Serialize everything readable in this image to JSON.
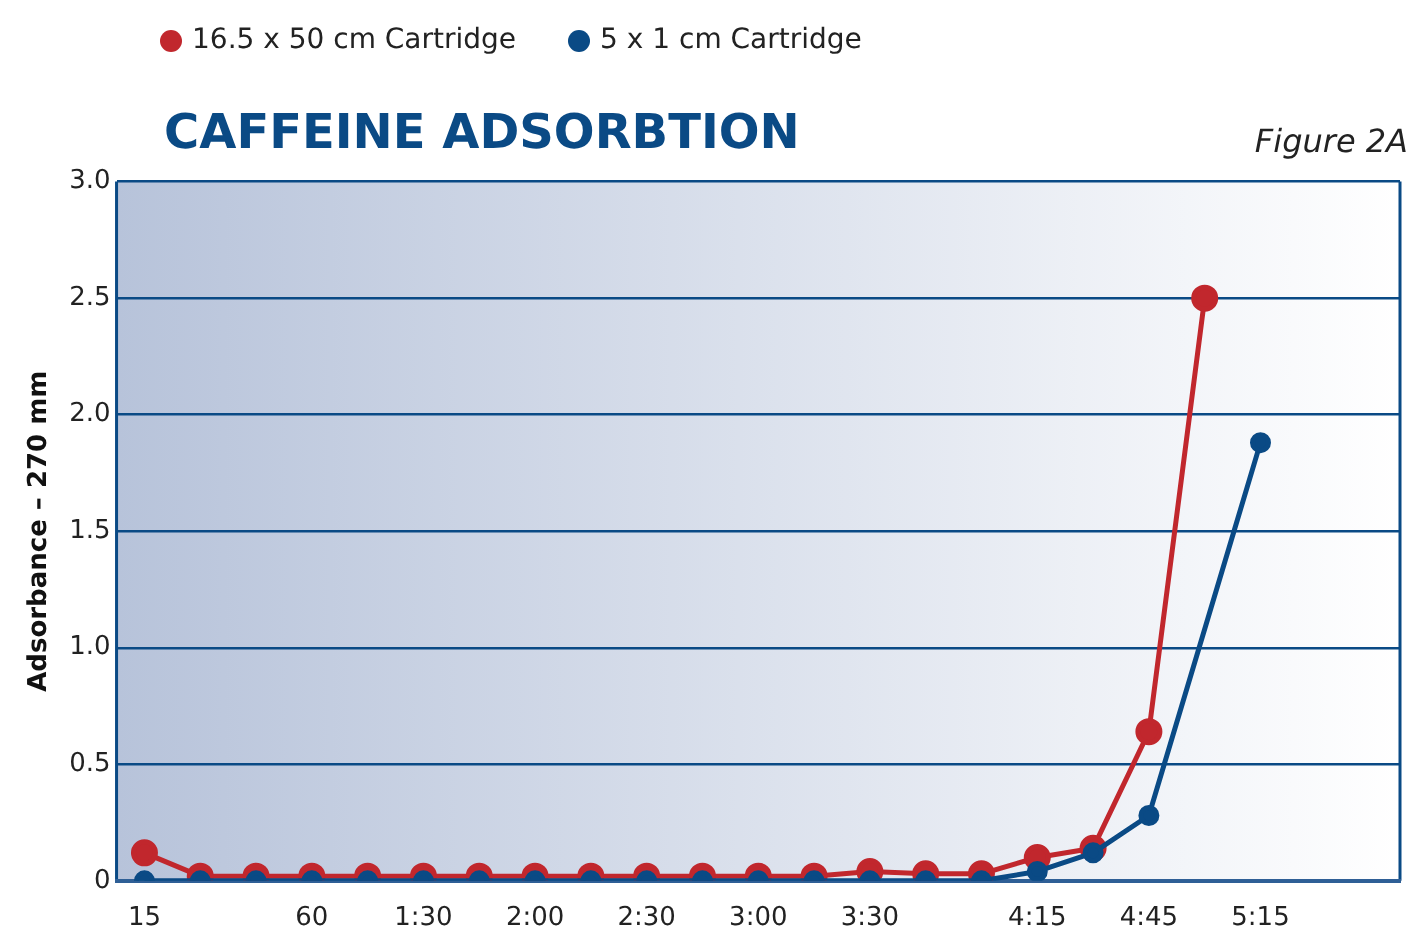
{
  "chart_data": {
    "type": "line",
    "title": "CAFFEINE ADSORBTION",
    "ylabel": "Adsorbance – 270 mm",
    "annotations": [
      "Figure 2A"
    ],
    "categories": [
      "15",
      null,
      null,
      "60",
      null,
      "1:30",
      null,
      "2:00",
      null,
      "2:30",
      null,
      "3:00",
      null,
      "3:30",
      null,
      null,
      "4:15",
      null,
      "4:45",
      null,
      "5:15",
      null,
      null
    ],
    "series": [
      {
        "name": "16.5 x 50 cm Cartridge",
        "color": "#c1272d",
        "values": [
          0.12,
          0.02,
          0.02,
          0.02,
          0.02,
          0.02,
          0.02,
          0.02,
          0.02,
          0.02,
          0.02,
          0.02,
          0.02,
          0.04,
          0.03,
          0.03,
          0.1,
          0.14,
          0.64,
          2.5,
          null,
          null,
          null
        ]
      },
      {
        "name": "5 x 1 cm Cartridge",
        "color": "#0a4a85",
        "values": [
          0,
          0,
          0,
          0,
          0,
          0,
          0,
          0,
          0,
          0,
          0,
          0,
          0,
          0,
          0,
          0,
          0.04,
          0.12,
          0.28,
          null,
          1.88,
          null,
          null
        ]
      }
    ],
    "ylim": [
      0,
      3
    ],
    "yticks": [
      0,
      0.5,
      {
        "value": 1,
        "label": "1.0"
      },
      1.5,
      {
        "value": 2,
        "label": "2.0"
      },
      2.5,
      {
        "value": 3,
        "label": "3.0"
      }
    ],
    "grid": "y",
    "legend": "top left",
    "marker": "circle",
    "line_style": "solid"
  }
}
